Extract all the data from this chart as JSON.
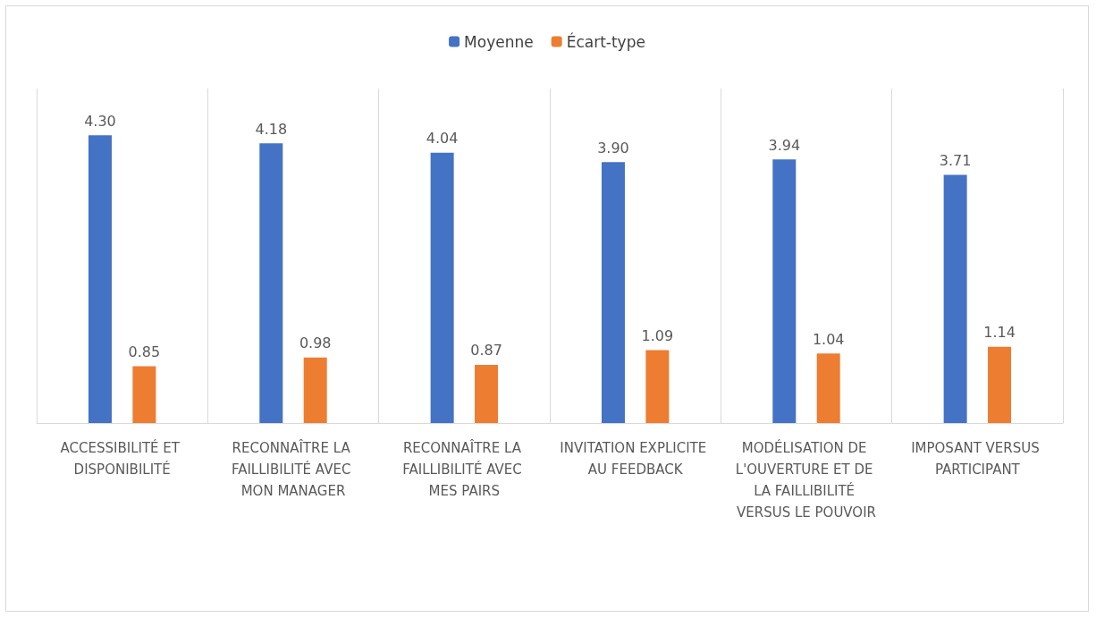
{
  "chart_data": {
    "type": "bar",
    "categories": [
      "ACCESSIBILITÉ ET DISPONIBILITÉ",
      "RECONNAÎTRE LA FAILLIBILITÉ AVEC MON MANAGER",
      "RECONNAÎTRE LA FAILLIBILITÉ AVEC MES PAIRS",
      "INVITATION EXPLICITE AU FEEDBACK",
      "MODÉLISATION DE L'OUVERTURE ET DE LA FAILLIBILITÉ VERSUS LE POUVOIR",
      "IMPOSANT VERSUS PARTICIPANT"
    ],
    "series": [
      {
        "name": "Moyenne",
        "color": "#4472c4",
        "values": [
          4.3,
          4.18,
          4.04,
          3.9,
          3.94,
          3.71
        ],
        "value_labels": [
          "4.30",
          "4.18",
          "4.04",
          "3.90",
          "3.94",
          "3.71"
        ]
      },
      {
        "name": "Écart-type",
        "color": "#ed7d31",
        "values": [
          0.85,
          0.98,
          0.87,
          1.09,
          1.04,
          1.14
        ],
        "value_labels": [
          "0.85",
          "0.98",
          "0.87",
          "1.09",
          "1.04",
          "1.14"
        ]
      }
    ],
    "legend": "top",
    "grid": "x",
    "tick_labels": "x"
  }
}
